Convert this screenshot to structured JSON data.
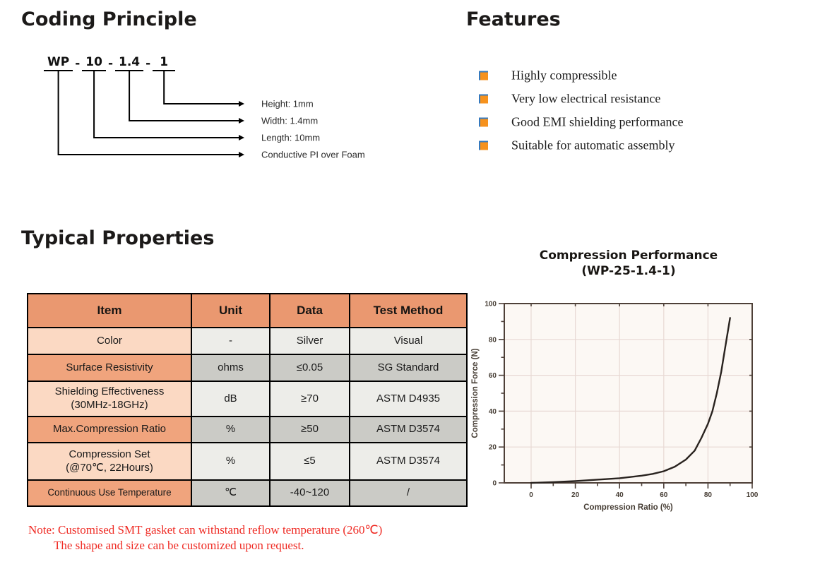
{
  "coding_principle": {
    "title": "Coding Principle",
    "code_segments": [
      "WP",
      "10",
      "1.4",
      "1"
    ],
    "separator": "-",
    "labels": [
      "Height: 1mm",
      "Width: 1.4mm",
      "Length: 10mm",
      "Conductive PI over Foam"
    ]
  },
  "features": {
    "title": "Features",
    "items": [
      "Highly compressible",
      "Very low electrical resistance",
      "Good EMI shielding performance",
      "Suitable for automatic assembly"
    ],
    "bullet_color": "#F6921E",
    "bullet_edge_color": "#3579BE"
  },
  "typical_properties": {
    "title": "Typical Properties",
    "table": {
      "headers": [
        "Item",
        "Unit",
        "Data",
        "Test Method"
      ],
      "rows": [
        {
          "item": "Color",
          "unit": "-",
          "data": "Silver",
          "method": "Visual"
        },
        {
          "item": "Surface Resistivity",
          "unit": "ohms",
          "data": "≤0.05",
          "method": "SG Standard"
        },
        {
          "item": "Shielding Effectiveness",
          "item2": "(30MHz-18GHz)",
          "unit": "dB",
          "data": "≥70",
          "method": "ASTM D4935"
        },
        {
          "item": "Max.Compression Ratio",
          "unit": "%",
          "data": "≥50",
          "method": "ASTM D3574"
        },
        {
          "item": "Compression Set",
          "item2": "(@70℃, 22Hours)",
          "unit": "%",
          "data": "≤5",
          "method": "ASTM D3574"
        },
        {
          "item": "Continuous Use Temperature",
          "unit": "℃",
          "data": "-40~120",
          "method": "/"
        }
      ],
      "colors": {
        "header_bg": "#EA9870",
        "item_row_light": "#FBD9C3",
        "item_row_dark": "#F0A47D",
        "cell_row_light": "#EDEDE9",
        "cell_row_dark": "#CBCBC6",
        "border": "#000000"
      }
    },
    "note_line1": "Note: Customised SMT gasket can withstand reflow temperature (260℃)",
    "note_line2": "The shape and size can be customized upon request.",
    "note_color": "#EF2B24"
  },
  "chart_data": {
    "type": "line",
    "title": "Compression Performance",
    "subtitle": "(WP-25-1.4-1)",
    "xlabel": "Compression Ratio (%)",
    "ylabel": "Compression Force (N)",
    "xlim": [
      0,
      100
    ],
    "ylim": [
      0,
      100
    ],
    "x_ticks": [
      0,
      20,
      40,
      60,
      80,
      100
    ],
    "y_ticks": [
      0,
      20,
      40,
      60,
      80,
      100
    ],
    "minor_tick_step": 10,
    "grid": true,
    "legend": "none",
    "colors": {
      "frame": "#4E4038",
      "grid": "#E8D9D4",
      "curve": "#29231F",
      "text": "#453C33",
      "plot_bg": "#FCF8F4"
    },
    "series": [
      {
        "name": "WP-25-1.4-1",
        "points": [
          [
            0,
            0
          ],
          [
            10,
            0.4
          ],
          [
            20,
            1
          ],
          [
            30,
            1.8
          ],
          [
            40,
            2.6
          ],
          [
            50,
            4
          ],
          [
            55,
            5
          ],
          [
            60,
            6.5
          ],
          [
            65,
            9
          ],
          [
            70,
            13
          ],
          [
            74,
            18
          ],
          [
            77,
            25
          ],
          [
            80,
            33
          ],
          [
            82,
            40
          ],
          [
            84,
            50
          ],
          [
            86,
            62
          ],
          [
            88,
            77
          ],
          [
            90,
            92
          ]
        ]
      }
    ]
  }
}
